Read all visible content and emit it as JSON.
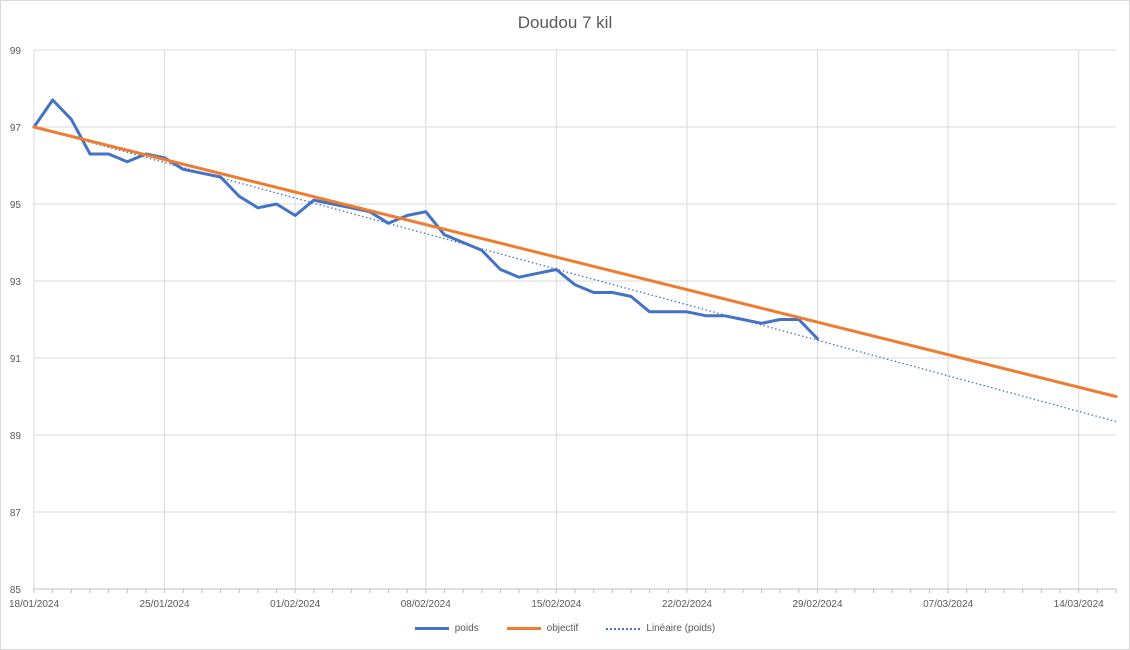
{
  "chart_data": {
    "type": "line",
    "title": "Doudou 7 kil",
    "y_ticks": [
      "85",
      "87",
      "89",
      "91",
      "93",
      "95",
      "97",
      "99"
    ],
    "ylim": [
      85,
      99
    ],
    "x_ticks": [
      "18/01/2024",
      "25/01/2024",
      "01/02/2024",
      "08/02/2024",
      "15/02/2024",
      "22/02/2024",
      "29/02/2024",
      "07/03/2024",
      "14/03/2024"
    ],
    "x_range": [
      "18/01/2024",
      "16/03/2024"
    ],
    "grid": true,
    "legend_position": "bottom",
    "series": [
      {
        "name": "poids",
        "color": "#4472c4",
        "style": "solid",
        "x": [
          "18/01/2024",
          "19/01/2024",
          "20/01/2024",
          "21/01/2024",
          "22/01/2024",
          "23/01/2024",
          "24/01/2024",
          "25/01/2024",
          "26/01/2024",
          "27/01/2024",
          "28/01/2024",
          "29/01/2024",
          "30/01/2024",
          "31/01/2024",
          "01/02/2024",
          "02/02/2024",
          "03/02/2024",
          "04/02/2024",
          "05/02/2024",
          "06/02/2024",
          "07/02/2024",
          "08/02/2024",
          "09/02/2024",
          "10/02/2024",
          "11/02/2024",
          "12/02/2024",
          "13/02/2024",
          "14/02/2024",
          "15/02/2024",
          "16/02/2024",
          "17/02/2024",
          "18/02/2024",
          "19/02/2024",
          "20/02/2024",
          "21/02/2024",
          "22/02/2024",
          "23/02/2024",
          "24/02/2024",
          "25/02/2024",
          "26/02/2024",
          "27/02/2024",
          "28/02/2024",
          "29/02/2024"
        ],
        "values": [
          97.0,
          97.7,
          97.2,
          96.3,
          96.3,
          96.1,
          96.3,
          96.2,
          95.9,
          95.8,
          95.7,
          95.2,
          94.9,
          95.0,
          94.7,
          95.1,
          95.0,
          94.9,
          94.8,
          94.5,
          94.7,
          94.8,
          94.2,
          94.0,
          93.8,
          93.3,
          93.1,
          93.2,
          93.3,
          92.9,
          92.7,
          92.7,
          92.6,
          92.2,
          92.2,
          92.2,
          92.1,
          92.1,
          92.0,
          91.9,
          92.0,
          92.0,
          91.5
        ]
      },
      {
        "name": "objectif",
        "color": "#ed7d31",
        "style": "solid",
        "x": [
          "18/01/2024",
          "16/03/2024"
        ],
        "values": [
          97.0,
          90.0
        ]
      },
      {
        "name": "Linéaire (poids)",
        "color": "#4472c4",
        "style": "dotted",
        "x": [
          "18/01/2024",
          "16/03/2024"
        ],
        "values": [
          97.0,
          89.35
        ]
      }
    ]
  }
}
